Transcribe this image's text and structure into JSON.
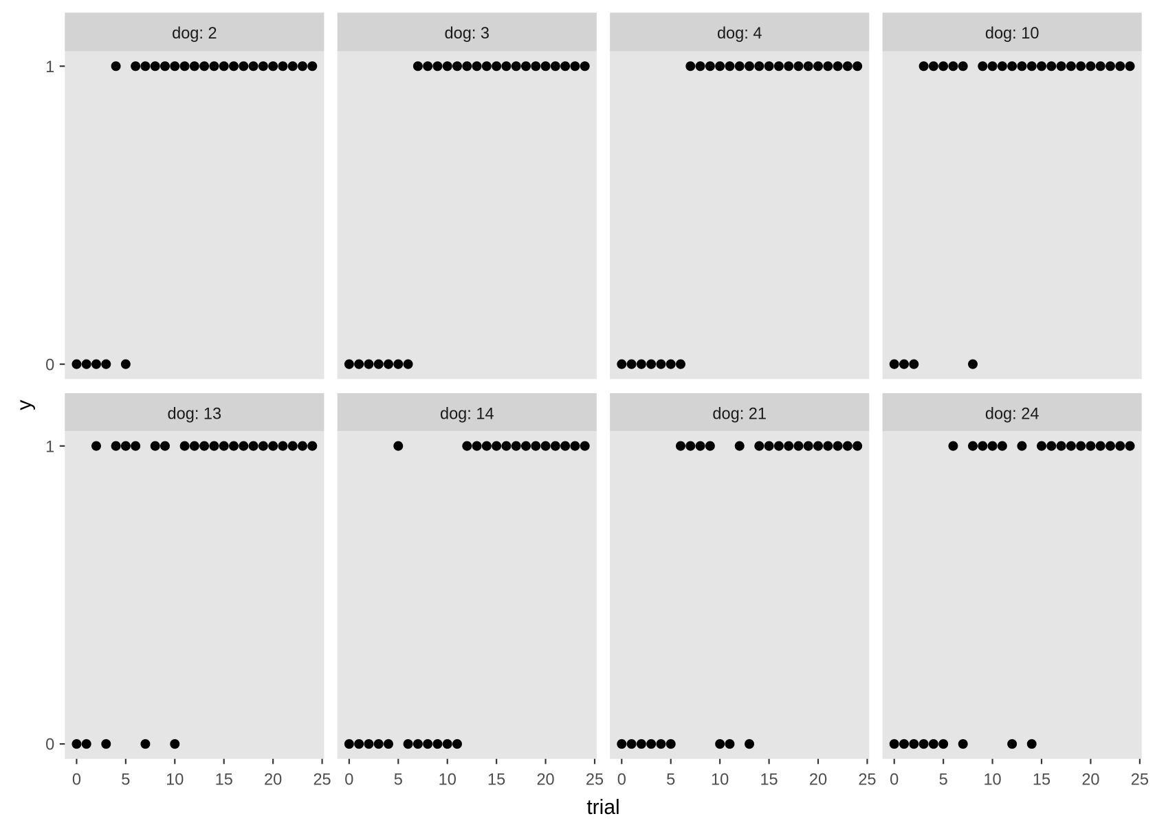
{
  "chart_data": {
    "type": "scatter",
    "facet_prefix": "dog: ",
    "xlabel": "trial",
    "ylabel": "y",
    "xlim": [
      -1.2,
      25.2
    ],
    "ylim": [
      -0.05,
      1.05
    ],
    "x_ticks": [
      "0",
      "5",
      "10",
      "15",
      "20",
      "25"
    ],
    "y_ticks": [
      "0",
      "1"
    ],
    "colors": {
      "panel": "#E5E5E5",
      "strip": "#D3D3D3",
      "point": "#000000",
      "tick": "#4D4D4D"
    },
    "panels": [
      {
        "dog": "2",
        "strip": "dog: 2",
        "ones": [
          4,
          6,
          7,
          8,
          9,
          10,
          11,
          12,
          13,
          14,
          15,
          16,
          17,
          18,
          19,
          20,
          21,
          22,
          23,
          24
        ],
        "zeros": [
          0,
          1,
          2,
          3,
          5
        ]
      },
      {
        "dog": "3",
        "strip": "dog: 3",
        "ones": [
          7,
          8,
          9,
          10,
          11,
          12,
          13,
          14,
          15,
          16,
          17,
          18,
          19,
          20,
          21,
          22,
          23,
          24
        ],
        "zeros": [
          0,
          1,
          2,
          3,
          4,
          5,
          6
        ]
      },
      {
        "dog": "4",
        "strip": "dog: 4",
        "ones": [
          7,
          8,
          9,
          10,
          11,
          12,
          13,
          14,
          15,
          16,
          17,
          18,
          19,
          20,
          21,
          22,
          23,
          24
        ],
        "zeros": [
          0,
          1,
          2,
          3,
          4,
          5,
          6
        ]
      },
      {
        "dog": "10",
        "strip": "dog: 10",
        "ones": [
          3,
          4,
          5,
          6,
          7,
          9,
          10,
          11,
          12,
          13,
          14,
          15,
          16,
          17,
          18,
          19,
          20,
          21,
          22,
          23,
          24
        ],
        "zeros": [
          0,
          1,
          2,
          8
        ]
      },
      {
        "dog": "13",
        "strip": "dog: 13",
        "ones": [
          2,
          4,
          5,
          6,
          8,
          9,
          11,
          12,
          13,
          14,
          15,
          16,
          17,
          18,
          19,
          20,
          21,
          22,
          23,
          24
        ],
        "zeros": [
          0,
          1,
          3,
          7,
          10
        ]
      },
      {
        "dog": "14",
        "strip": "dog: 14",
        "ones": [
          5,
          12,
          13,
          14,
          15,
          16,
          17,
          18,
          19,
          20,
          21,
          22,
          23,
          24
        ],
        "zeros": [
          0,
          1,
          2,
          3,
          4,
          6,
          7,
          8,
          9,
          10,
          11
        ]
      },
      {
        "dog": "21",
        "strip": "dog: 21",
        "ones": [
          6,
          7,
          8,
          9,
          12,
          14,
          15,
          16,
          17,
          18,
          19,
          20,
          21,
          22,
          23,
          24
        ],
        "zeros": [
          0,
          1,
          2,
          3,
          4,
          5,
          10,
          11,
          13
        ]
      },
      {
        "dog": "24",
        "strip": "dog: 24",
        "ones": [
          6,
          8,
          9,
          10,
          11,
          13,
          15,
          16,
          17,
          18,
          19,
          20,
          21,
          22,
          23,
          24
        ],
        "zeros": [
          0,
          1,
          2,
          3,
          4,
          5,
          7,
          12,
          14
        ]
      }
    ]
  }
}
